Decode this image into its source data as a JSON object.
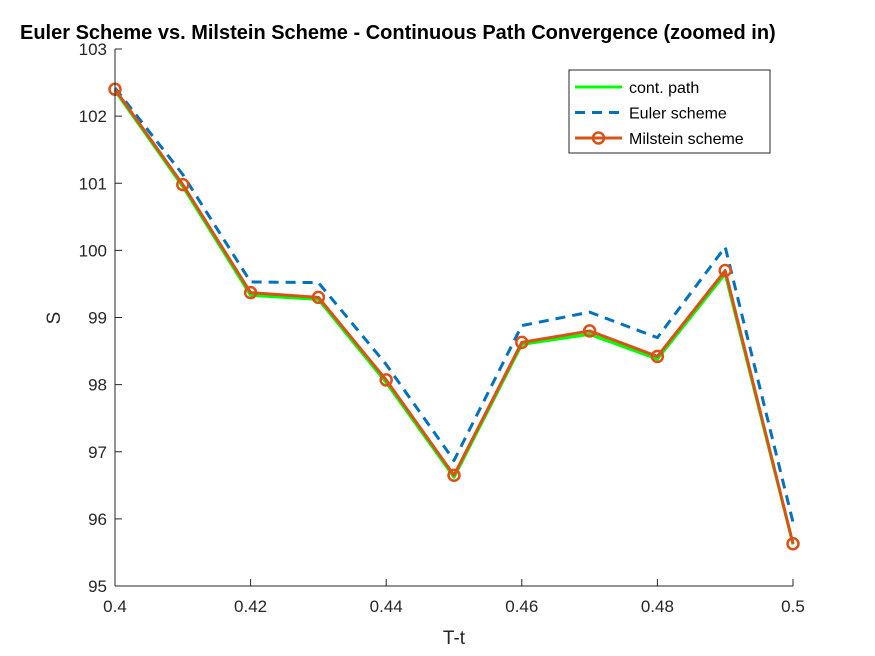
{
  "chart_data": {
    "type": "line",
    "title": "Euler Scheme vs. Milstein Scheme - Continuous Path Convergence (zoomed in)",
    "xlabel": "T-t",
    "ylabel": "S",
    "xlim": [
      0.4,
      0.5
    ],
    "ylim": [
      95,
      103
    ],
    "x": [
      0.4,
      0.41,
      0.42,
      0.43,
      0.44,
      0.45,
      0.46,
      0.47,
      0.48,
      0.49,
      0.5
    ],
    "xticks": [
      0.4,
      0.42,
      0.44,
      0.46,
      0.48,
      0.5
    ],
    "xtick_labels": [
      "0.4",
      "0.42",
      "0.44",
      "0.46",
      "0.48",
      "0.5"
    ],
    "yticks": [
      95,
      96,
      97,
      98,
      99,
      100,
      101,
      102,
      103
    ],
    "ytick_labels": [
      "95",
      "96",
      "97",
      "98",
      "99",
      "100",
      "101",
      "102",
      "103"
    ],
    "grid": false,
    "legend_position": "top-right",
    "series": [
      {
        "name": "cont. path",
        "color": "#00ff00",
        "style": "solid",
        "values": [
          102.38,
          100.95,
          99.33,
          99.27,
          98.03,
          96.62,
          98.6,
          98.75,
          98.38,
          99.65,
          95.62
        ]
      },
      {
        "name": "Euler scheme",
        "color": "#0072bd",
        "style": "dashed",
        "values": [
          102.42,
          101.13,
          99.53,
          99.52,
          98.3,
          96.87,
          98.88,
          99.08,
          98.7,
          100.05,
          95.95
        ]
      },
      {
        "name": "Milstein scheme",
        "color": "#d95319",
        "style": "solid-circle",
        "values": [
          102.4,
          100.98,
          99.37,
          99.3,
          98.07,
          96.65,
          98.63,
          98.8,
          98.42,
          99.7,
          95.63
        ]
      }
    ]
  }
}
